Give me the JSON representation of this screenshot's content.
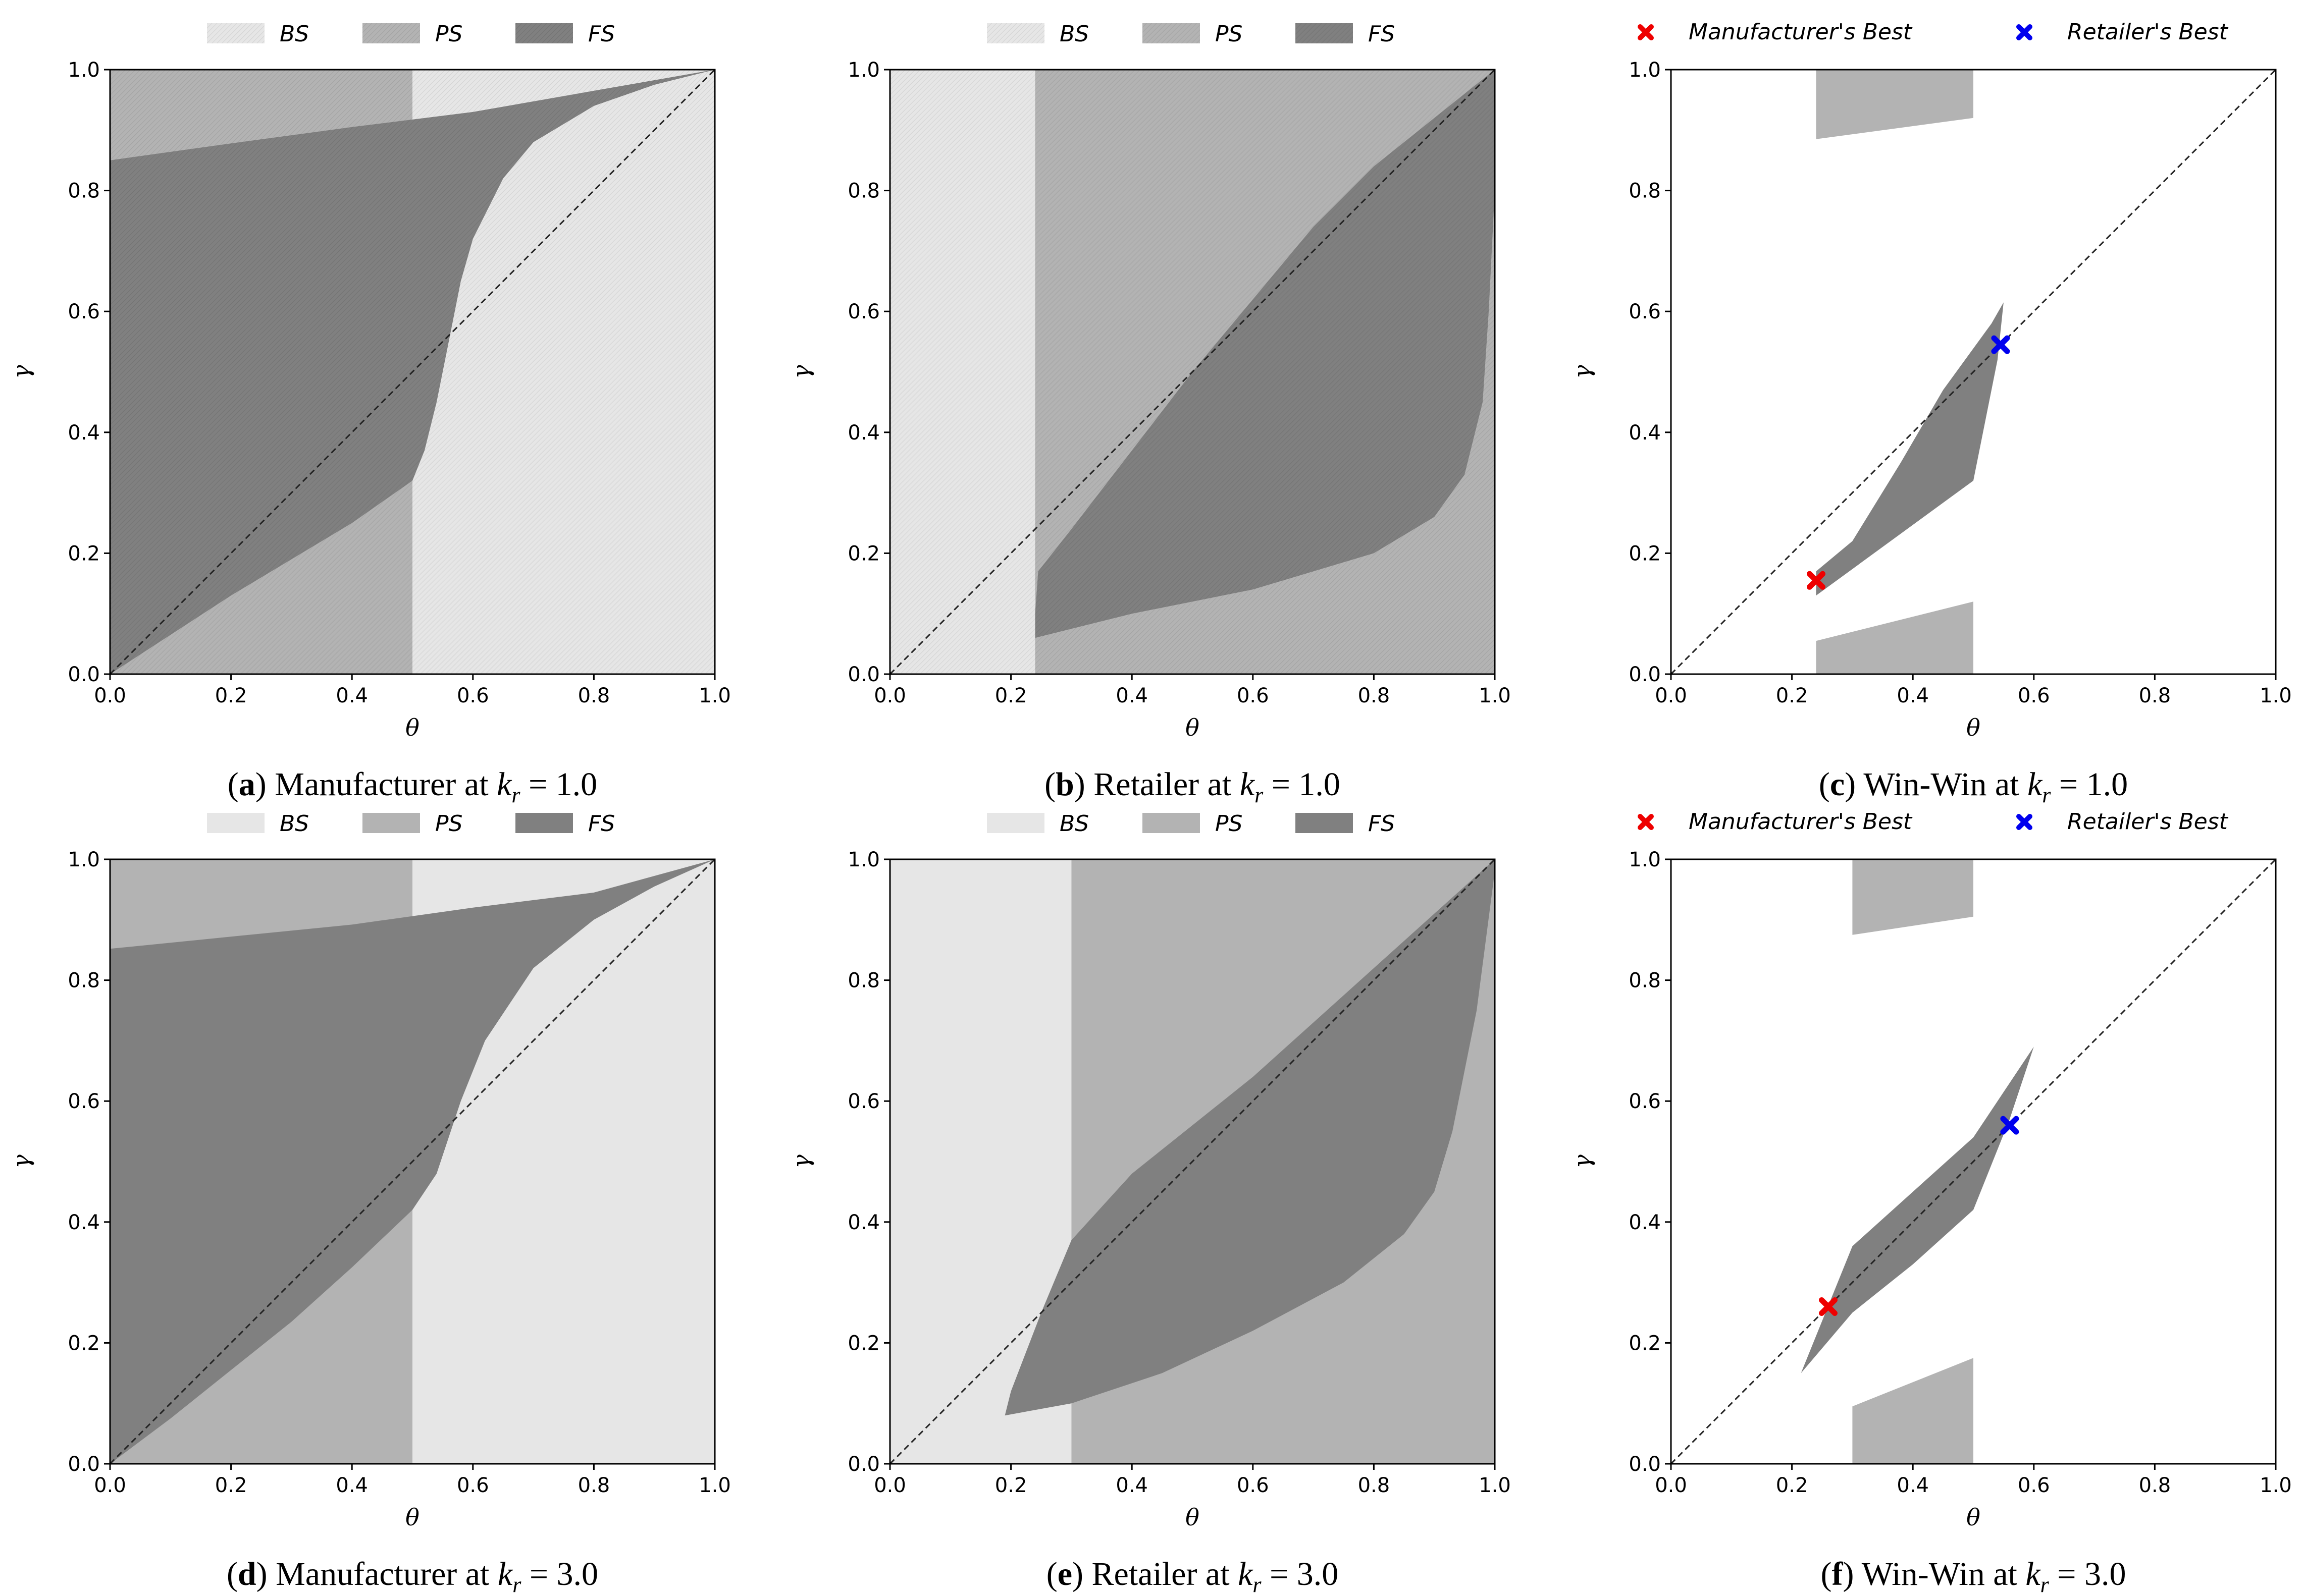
{
  "figure": {
    "colors": {
      "BS": "#e6e6e6",
      "PS": "#b3b3b3",
      "FS": "#808080",
      "manufacturer_marker": "#ee0000",
      "retailer_marker": "#0000ee",
      "diagonal": "#222222"
    }
  },
  "chart_data": [
    {
      "id": "a",
      "type": "area",
      "kind": "region",
      "caption": {
        "letter": "a",
        "text": "Manufacturer at",
        "param_symbol": "k",
        "param_sub": "r",
        "param_value": "= 1.0"
      },
      "xlabel": "θ",
      "ylabel": "γ",
      "xlim": [
        0,
        1
      ],
      "ylim": [
        0,
        1
      ],
      "xticks": [
        "0.0",
        "0.2",
        "0.4",
        "0.6",
        "0.8",
        "1.0"
      ],
      "yticks": [
        "0.0",
        "0.2",
        "0.4",
        "0.6",
        "0.8",
        "1.0"
      ],
      "legend": {
        "position": "top",
        "entries": [
          {
            "label": "BS",
            "key": "BS"
          },
          {
            "label": "PS",
            "key": "PS"
          },
          {
            "label": "FS",
            "key": "FS"
          }
        ]
      },
      "hatched": true,
      "regions": [
        {
          "key": "PS",
          "points": [
            [
              0,
              0
            ],
            [
              0.5,
              0
            ],
            [
              0.5,
              1
            ],
            [
              0,
              1
            ]
          ]
        },
        {
          "key": "BS",
          "points": [
            [
              0.5,
              0
            ],
            [
              1,
              0
            ],
            [
              1,
              1
            ],
            [
              0.5,
              1
            ]
          ]
        },
        {
          "key": "FS",
          "points": [
            [
              0,
              0
            ],
            [
              0.1,
              0.065
            ],
            [
              0.2,
              0.13
            ],
            [
              0.3,
              0.19
            ],
            [
              0.4,
              0.25
            ],
            [
              0.5,
              0.32
            ],
            [
              0.52,
              0.37
            ],
            [
              0.54,
              0.45
            ],
            [
              0.56,
              0.55
            ],
            [
              0.58,
              0.65
            ],
            [
              0.6,
              0.72
            ],
            [
              0.65,
              0.82
            ],
            [
              0.7,
              0.88
            ],
            [
              0.8,
              0.94
            ],
            [
              0.9,
              0.975
            ],
            [
              1,
              1
            ],
            [
              0.8,
              0.965
            ],
            [
              0.6,
              0.93
            ],
            [
              0.4,
              0.905
            ],
            [
              0.2,
              0.878
            ],
            [
              0,
              0.85
            ]
          ]
        }
      ],
      "diagonal": true
    },
    {
      "id": "b",
      "type": "area",
      "kind": "region",
      "caption": {
        "letter": "b",
        "text": "Retailer at",
        "param_symbol": "k",
        "param_sub": "r",
        "param_value": "= 1.0"
      },
      "xlabel": "θ",
      "ylabel": "γ",
      "xlim": [
        0,
        1
      ],
      "ylim": [
        0,
        1
      ],
      "xticks": [
        "0.0",
        "0.2",
        "0.4",
        "0.6",
        "0.8",
        "1.0"
      ],
      "yticks": [
        "0.0",
        "0.2",
        "0.4",
        "0.6",
        "0.8",
        "1.0"
      ],
      "legend": {
        "position": "top",
        "entries": [
          {
            "label": "BS",
            "key": "BS"
          },
          {
            "label": "PS",
            "key": "PS"
          },
          {
            "label": "FS",
            "key": "FS"
          }
        ]
      },
      "hatched": true,
      "regions": [
        {
          "key": "BS",
          "points": [
            [
              0,
              0
            ],
            [
              0.24,
              0
            ],
            [
              0.24,
              1
            ],
            [
              0,
              1
            ]
          ]
        },
        {
          "key": "PS",
          "points": [
            [
              0.24,
              0
            ],
            [
              1,
              0
            ],
            [
              1,
              1
            ],
            [
              0.24,
              1
            ]
          ]
        },
        {
          "key": "FS",
          "points": [
            [
              0.24,
              0.06
            ],
            [
              0.4,
              0.1
            ],
            [
              0.6,
              0.14
            ],
            [
              0.8,
              0.2
            ],
            [
              0.9,
              0.26
            ],
            [
              0.95,
              0.33
            ],
            [
              0.98,
              0.45
            ],
            [
              0.99,
              0.6
            ],
            [
              1,
              0.8
            ],
            [
              1,
              1
            ],
            [
              0.9,
              0.92
            ],
            [
              0.8,
              0.84
            ],
            [
              0.7,
              0.74
            ],
            [
              0.6,
              0.62
            ],
            [
              0.5,
              0.5
            ],
            [
              0.4,
              0.37
            ],
            [
              0.3,
              0.24
            ],
            [
              0.245,
              0.17
            ],
            [
              0.24,
              0.1
            ]
          ]
        }
      ],
      "diagonal": true
    },
    {
      "id": "c",
      "type": "area",
      "kind": "winwin",
      "caption": {
        "letter": "c",
        "text": "Win-Win at",
        "param_symbol": "k",
        "param_sub": "r",
        "param_value": "= 1.0"
      },
      "xlabel": "θ",
      "ylabel": "γ",
      "xlim": [
        0,
        1
      ],
      "ylim": [
        0,
        1
      ],
      "xticks": [
        "0.0",
        "0.2",
        "0.4",
        "0.6",
        "0.8",
        "1.0"
      ],
      "yticks": [
        "0.0",
        "0.2",
        "0.4",
        "0.6",
        "0.8",
        "1.0"
      ],
      "legend": {
        "position": "top",
        "entries": [
          {
            "label": "Manufacturer's Best",
            "key": "manufacturer_marker"
          },
          {
            "label": "Retailer's Best",
            "key": "retailer_marker"
          }
        ]
      },
      "hatched": false,
      "regions": [
        {
          "key": "PS",
          "points": [
            [
              0.24,
              0.885
            ],
            [
              0.5,
              0.92
            ],
            [
              0.5,
              1
            ],
            [
              0.24,
              1
            ]
          ]
        },
        {
          "key": "PS",
          "points": [
            [
              0.24,
              0
            ],
            [
              0.5,
              0
            ],
            [
              0.5,
              0.12
            ],
            [
              0.24,
              0.055
            ]
          ]
        },
        {
          "key": "FS",
          "points": [
            [
              0.24,
              0.13
            ],
            [
              0.5,
              0.32
            ],
            [
              0.54,
              0.52
            ],
            [
              0.55,
              0.615
            ],
            [
              0.53,
              0.58
            ],
            [
              0.45,
              0.47
            ],
            [
              0.38,
              0.35
            ],
            [
              0.3,
              0.22
            ],
            [
              0.24,
              0.17
            ]
          ]
        }
      ],
      "markers": [
        {
          "name": "Manufacturer's Best",
          "key": "manufacturer_marker",
          "x": 0.24,
          "y": 0.155
        },
        {
          "name": "Retailer's Best",
          "key": "retailer_marker",
          "x": 0.545,
          "y": 0.545
        }
      ],
      "diagonal": true
    },
    {
      "id": "d",
      "type": "area",
      "kind": "region",
      "caption": {
        "letter": "d",
        "text": "Manufacturer at",
        "param_symbol": "k",
        "param_sub": "r",
        "param_value": "= 3.0"
      },
      "xlabel": "θ",
      "ylabel": "γ",
      "xlim": [
        0,
        1
      ],
      "ylim": [
        0,
        1
      ],
      "xticks": [
        "0.0",
        "0.2",
        "0.4",
        "0.6",
        "0.8",
        "1.0"
      ],
      "yticks": [
        "0.0",
        "0.2",
        "0.4",
        "0.6",
        "0.8",
        "1.0"
      ],
      "legend": {
        "position": "top",
        "entries": [
          {
            "label": "BS",
            "key": "BS"
          },
          {
            "label": "PS",
            "key": "PS"
          },
          {
            "label": "FS",
            "key": "FS"
          }
        ]
      },
      "hatched": false,
      "regions": [
        {
          "key": "PS",
          "points": [
            [
              0,
              0
            ],
            [
              0.5,
              0
            ],
            [
              0.5,
              1
            ],
            [
              0,
              1
            ]
          ]
        },
        {
          "key": "BS",
          "points": [
            [
              0.5,
              0
            ],
            [
              1,
              0
            ],
            [
              1,
              1
            ],
            [
              0.5,
              1
            ]
          ]
        },
        {
          "key": "FS",
          "points": [
            [
              0,
              0
            ],
            [
              0.1,
              0.075
            ],
            [
              0.2,
              0.155
            ],
            [
              0.3,
              0.235
            ],
            [
              0.4,
              0.325
            ],
            [
              0.5,
              0.42
            ],
            [
              0.54,
              0.48
            ],
            [
              0.58,
              0.6
            ],
            [
              0.62,
              0.7
            ],
            [
              0.7,
              0.82
            ],
            [
              0.8,
              0.9
            ],
            [
              0.9,
              0.955
            ],
            [
              1,
              1
            ],
            [
              0.8,
              0.945
            ],
            [
              0.6,
              0.92
            ],
            [
              0.4,
              0.892
            ],
            [
              0.2,
              0.872
            ],
            [
              0,
              0.852
            ]
          ]
        }
      ],
      "diagonal": true
    },
    {
      "id": "e",
      "type": "area",
      "kind": "region",
      "caption": {
        "letter": "e",
        "text": "Retailer at",
        "param_symbol": "k",
        "param_sub": "r",
        "param_value": "= 3.0"
      },
      "xlabel": "θ",
      "ylabel": "γ",
      "xlim": [
        0,
        1
      ],
      "ylim": [
        0,
        1
      ],
      "xticks": [
        "0.0",
        "0.2",
        "0.4",
        "0.6",
        "0.8",
        "1.0"
      ],
      "yticks": [
        "0.0",
        "0.2",
        "0.4",
        "0.6",
        "0.8",
        "1.0"
      ],
      "legend": {
        "position": "top",
        "entries": [
          {
            "label": "BS",
            "key": "BS"
          },
          {
            "label": "PS",
            "key": "PS"
          },
          {
            "label": "FS",
            "key": "FS"
          }
        ]
      },
      "hatched": false,
      "regions": [
        {
          "key": "BS",
          "points": [
            [
              0,
              0
            ],
            [
              0.3,
              0
            ],
            [
              0.3,
              1
            ],
            [
              0,
              1
            ]
          ]
        },
        {
          "key": "PS",
          "points": [
            [
              0.3,
              0
            ],
            [
              1,
              0
            ],
            [
              1,
              1
            ],
            [
              0.3,
              1
            ]
          ]
        },
        {
          "key": "FS",
          "points": [
            [
              0.19,
              0.08
            ],
            [
              0.3,
              0.1
            ],
            [
              0.45,
              0.15
            ],
            [
              0.6,
              0.22
            ],
            [
              0.75,
              0.3
            ],
            [
              0.85,
              0.38
            ],
            [
              0.9,
              0.45
            ],
            [
              0.93,
              0.55
            ],
            [
              0.95,
              0.65
            ],
            [
              0.97,
              0.75
            ],
            [
              1,
              0.98
            ],
            [
              1,
              1
            ],
            [
              0.9,
              0.91
            ],
            [
              0.8,
              0.82
            ],
            [
              0.7,
              0.73
            ],
            [
              0.6,
              0.64
            ],
            [
              0.5,
              0.56
            ],
            [
              0.4,
              0.48
            ],
            [
              0.3,
              0.37
            ],
            [
              0.25,
              0.25
            ],
            [
              0.2,
              0.12
            ]
          ]
        }
      ],
      "diagonal": true
    },
    {
      "id": "f",
      "type": "area",
      "kind": "winwin",
      "caption": {
        "letter": "f",
        "text": "Win-Win at",
        "param_symbol": "k",
        "param_sub": "r",
        "param_value": "= 3.0"
      },
      "xlabel": "θ",
      "ylabel": "γ",
      "xlim": [
        0,
        1
      ],
      "ylim": [
        0,
        1
      ],
      "xticks": [
        "0.0",
        "0.2",
        "0.4",
        "0.6",
        "0.8",
        "1.0"
      ],
      "yticks": [
        "0.0",
        "0.2",
        "0.4",
        "0.6",
        "0.8",
        "1.0"
      ],
      "legend": {
        "position": "top",
        "entries": [
          {
            "label": "Manufacturer's Best",
            "key": "manufacturer_marker"
          },
          {
            "label": "Retailer's Best",
            "key": "retailer_marker"
          }
        ]
      },
      "hatched": false,
      "regions": [
        {
          "key": "PS",
          "points": [
            [
              0.3,
              0.875
            ],
            [
              0.5,
              0.905
            ],
            [
              0.5,
              1
            ],
            [
              0.3,
              1
            ]
          ]
        },
        {
          "key": "PS",
          "points": [
            [
              0.3,
              0
            ],
            [
              0.5,
              0
            ],
            [
              0.5,
              0.175
            ],
            [
              0.3,
              0.095
            ]
          ]
        },
        {
          "key": "FS",
          "points": [
            [
              0.215,
              0.15
            ],
            [
              0.3,
              0.36
            ],
            [
              0.4,
              0.45
            ],
            [
              0.5,
              0.54
            ],
            [
              0.6,
              0.69
            ],
            [
              0.56,
              0.57
            ],
            [
              0.5,
              0.42
            ],
            [
              0.4,
              0.33
            ],
            [
              0.3,
              0.25
            ]
          ]
        }
      ],
      "markers": [
        {
          "name": "Manufacturer's Best",
          "key": "manufacturer_marker",
          "x": 0.26,
          "y": 0.26
        },
        {
          "name": "Retailer's Best",
          "key": "retailer_marker",
          "x": 0.56,
          "y": 0.56
        }
      ],
      "diagonal": true
    }
  ]
}
